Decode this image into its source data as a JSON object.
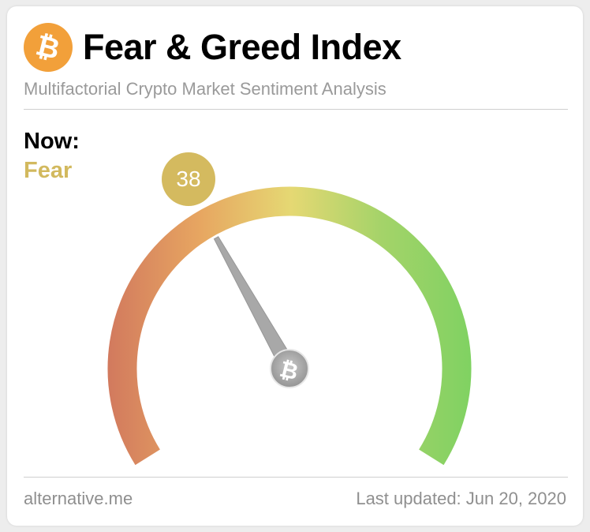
{
  "header": {
    "logo_glyph": "₿",
    "title": "Fear & Greed Index",
    "subtitle": "Multifactorial Crypto Market Sentiment Analysis"
  },
  "status": {
    "now_label": "Now:",
    "classification": "Fear",
    "value": "38",
    "value_numeric": 38,
    "scale_min": 0,
    "scale_max": 100,
    "accent_color": "#d4ba5f"
  },
  "gauge": {
    "colors": [
      "#d27a5e",
      "#e7a661",
      "#e5d873",
      "#a4d369",
      "#7fd262"
    ],
    "needle_hub_glyph": "₿"
  },
  "footer": {
    "source": "alternative.me",
    "last_updated": "Last updated: Jun 20, 2020"
  }
}
